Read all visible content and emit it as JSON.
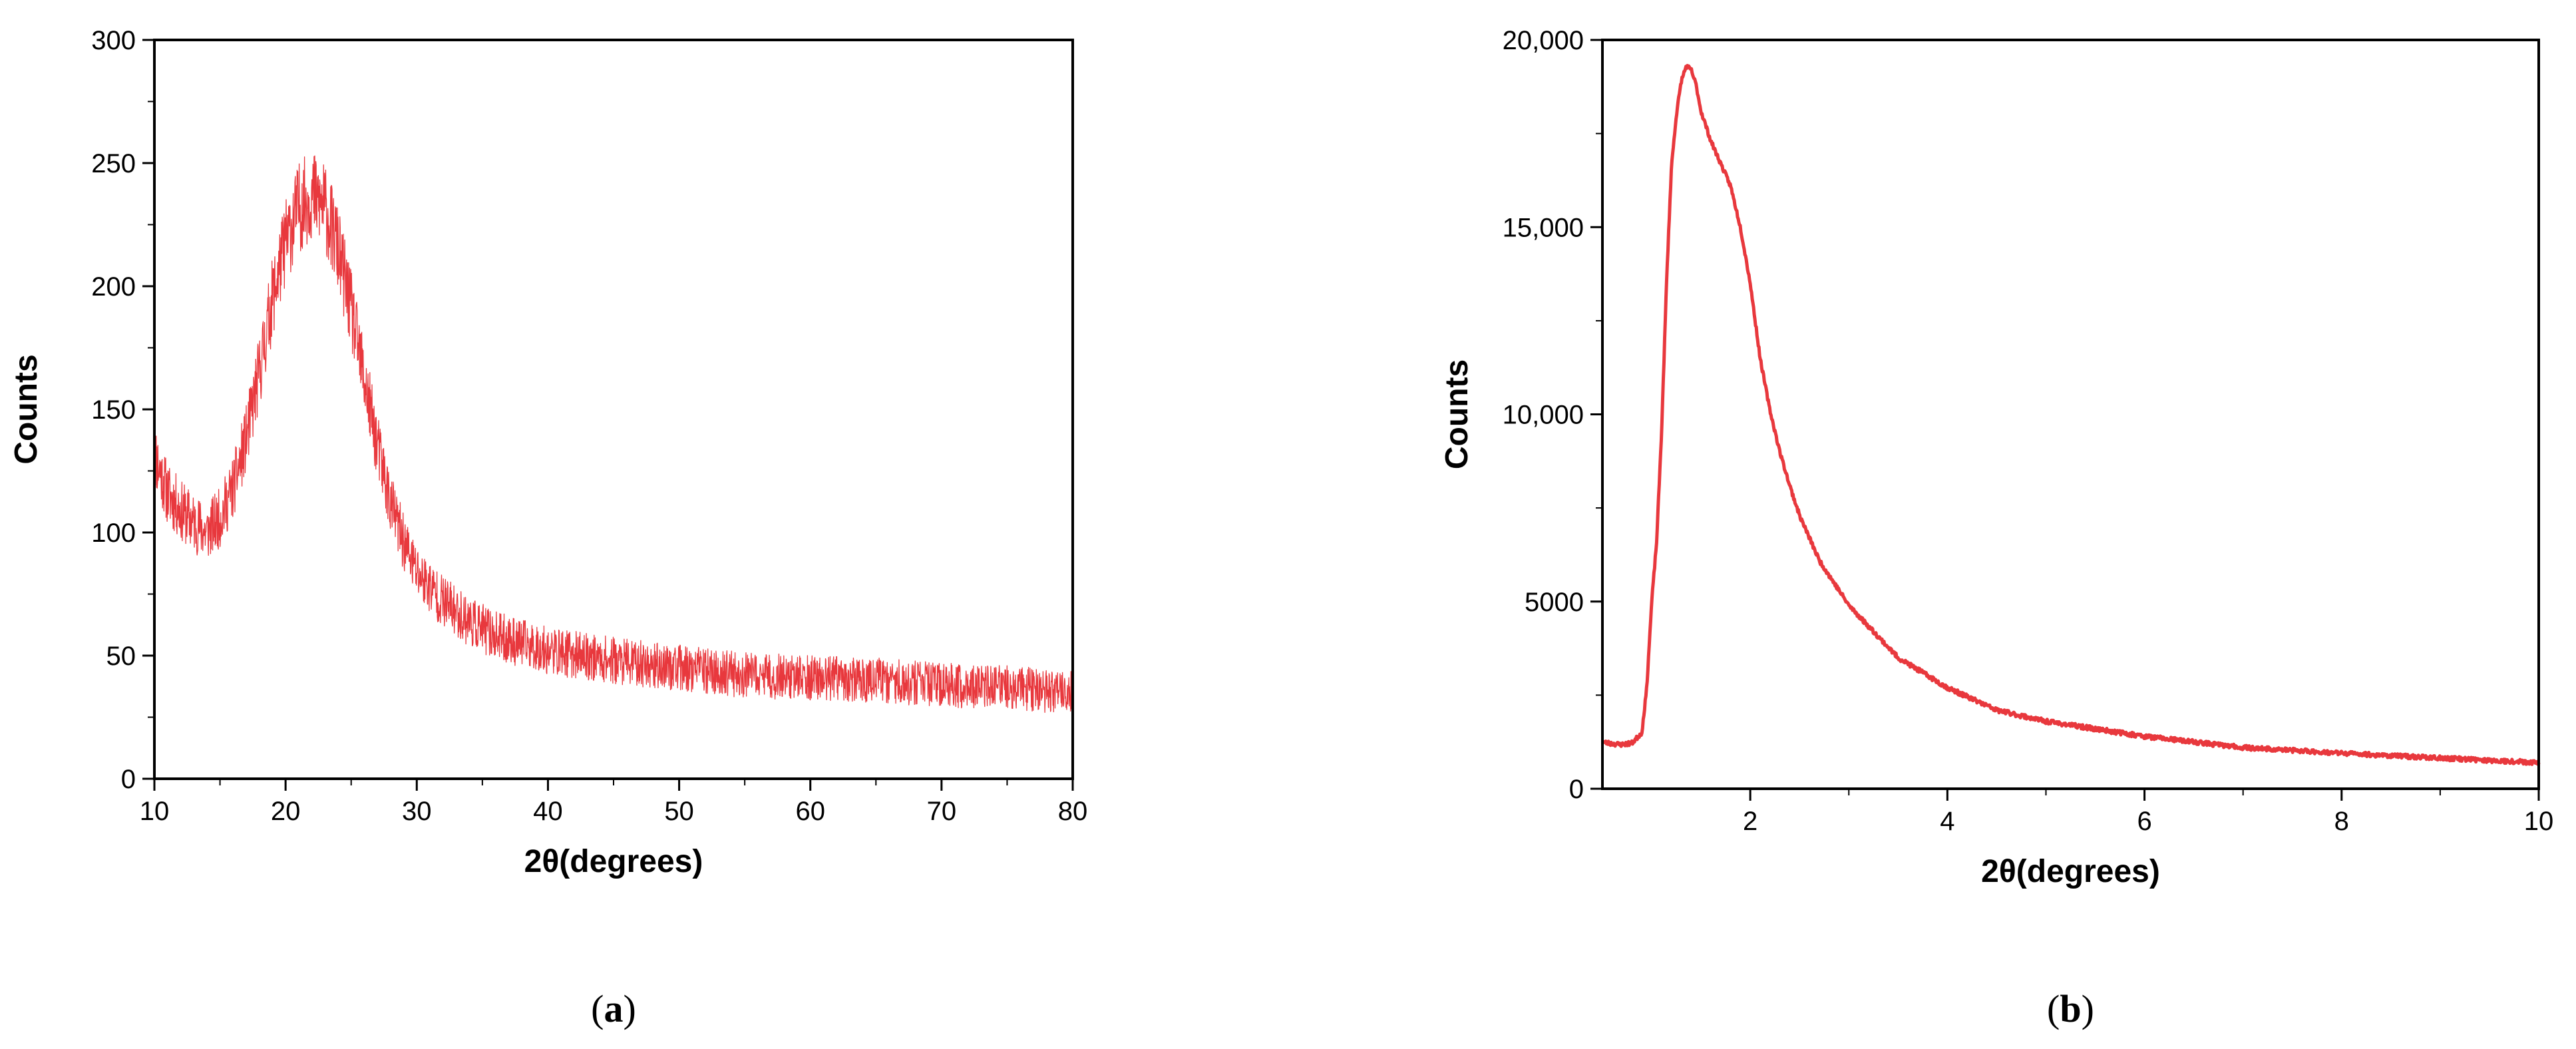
{
  "chart_data": [
    {
      "id": "a",
      "type": "line",
      "panel_label": "a",
      "xlabel": "2θ(degrees)",
      "ylabel": "Counts",
      "xlim": [
        10,
        80
      ],
      "ylim": [
        0,
        300
      ],
      "xticks": [
        10,
        20,
        30,
        40,
        50,
        60,
        70,
        80
      ],
      "yticks": [
        0,
        50,
        100,
        150,
        200,
        250,
        300
      ],
      "xtick_labels": [
        "10",
        "20",
        "30",
        "40",
        "50",
        "60",
        "70",
        "80"
      ],
      "ytick_labels": [
        "0",
        "50",
        "100",
        "150",
        "200",
        "250",
        "300"
      ],
      "color": "#e8383d",
      "grid": false,
      "noise_amplitude": 12,
      "series": [
        {
          "x": [
            10,
            11,
            12,
            13,
            14,
            15,
            16,
            17,
            18,
            19,
            20,
            21,
            22,
            23,
            24,
            25,
            26,
            27,
            28,
            29,
            30,
            32,
            34,
            36,
            38,
            40,
            45,
            50,
            55,
            60,
            65,
            70,
            75,
            80
          ],
          "values": [
            132,
            116,
            109,
            104,
            100,
            106,
            118,
            138,
            165,
            195,
            218,
            232,
            237,
            232,
            215,
            190,
            162,
            135,
            112,
            96,
            84,
            72,
            64,
            58,
            55,
            52,
            48,
            45,
            42,
            41,
            40,
            38,
            37,
            35
          ]
        }
      ]
    },
    {
      "id": "b",
      "type": "line",
      "panel_label": "b",
      "xlabel": "2θ(degrees)",
      "ylabel": "Counts",
      "xlim": [
        0.5,
        10
      ],
      "ylim": [
        0,
        20000
      ],
      "xticks": [
        2,
        4,
        6,
        8,
        10
      ],
      "yticks": [
        0,
        5000,
        10000,
        15000,
        20000
      ],
      "xtick_labels": [
        "2",
        "4",
        "6",
        "8",
        "10"
      ],
      "ytick_labels": [
        "0",
        "5000",
        "10,000",
        "15,000",
        "20,000"
      ],
      "color": "#e8383d",
      "grid": false,
      "noise_amplitude": 60,
      "series": [
        {
          "x": [
            0.5,
            0.6,
            0.7,
            0.8,
            0.9,
            0.95,
            1.0,
            1.05,
            1.1,
            1.15,
            1.2,
            1.25,
            1.3,
            1.35,
            1.4,
            1.45,
            1.5,
            1.6,
            1.7,
            1.8,
            1.9,
            2.0,
            2.1,
            2.2,
            2.3,
            2.4,
            2.5,
            2.7,
            3.0,
            3.5,
            4.0,
            4.5,
            5.0,
            6.0,
            7.0,
            8.0,
            9.0,
            10.0
          ],
          "values": [
            1250,
            1200,
            1180,
            1220,
            1500,
            2700,
            5000,
            6600,
            9500,
            13500,
            16600,
            18000,
            18900,
            19300,
            19200,
            18800,
            18100,
            17300,
            16700,
            16100,
            15000,
            13500,
            11500,
            10100,
            9000,
            8100,
            7300,
            6100,
            4900,
            3500,
            2700,
            2100,
            1800,
            1400,
            1100,
            950,
            820,
            700
          ]
        }
      ]
    }
  ]
}
